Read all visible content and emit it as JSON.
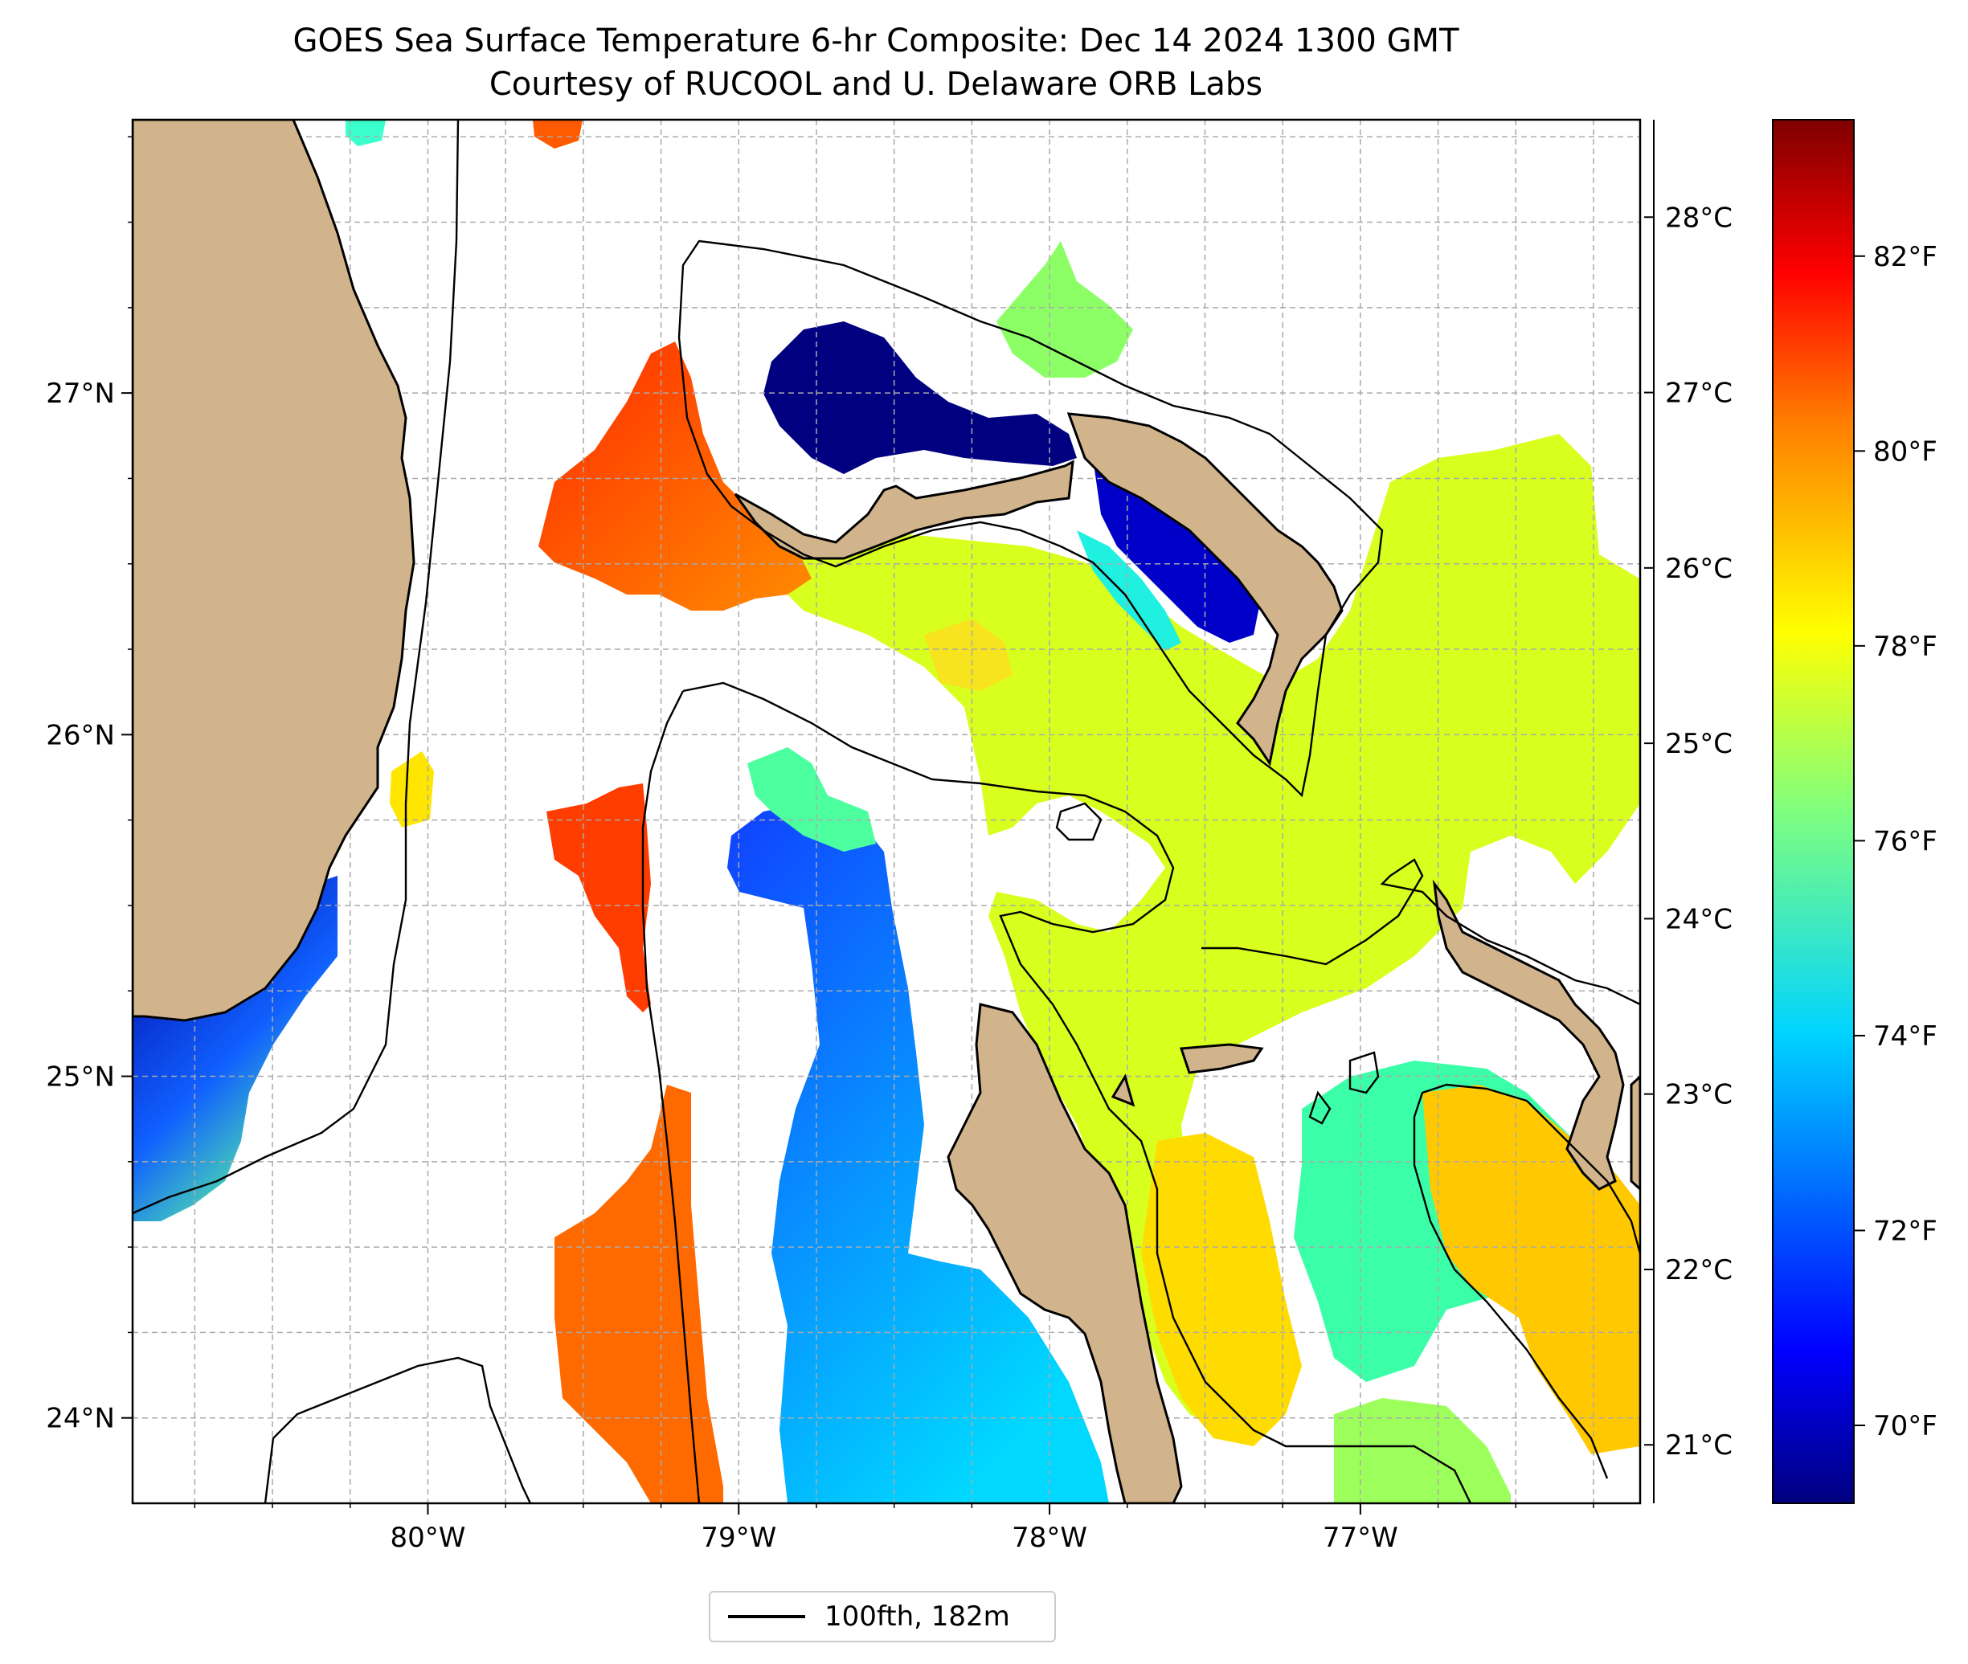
{
  "title": {
    "line1": "GOES Sea Surface Temperature 6-hr Composite: Dec 14 2024 1300 GMT",
    "line2": "Courtesy of RUCOOL and U. Delaware ORB Labs"
  },
  "map": {
    "lon_range": [
      -80.95,
      -76.1
    ],
    "lat_range": [
      23.75,
      27.8
    ],
    "lon_ticks": [
      {
        "value": -80,
        "label": "80°W"
      },
      {
        "value": -79,
        "label": "79°W"
      },
      {
        "value": -78,
        "label": "78°W"
      },
      {
        "value": -77,
        "label": "77°W"
      }
    ],
    "lat_ticks": [
      {
        "value": 24,
        "label": "24°N"
      },
      {
        "value": 25,
        "label": "25°N"
      },
      {
        "value": 26,
        "label": "26°N"
      },
      {
        "value": 27,
        "label": "27°N"
      }
    ],
    "gridlines": "dashed",
    "land_color": "#d2b48c",
    "ocean_background": "#ffffff"
  },
  "colorbar": {
    "colormap": "jet",
    "range_f": [
      69.2,
      83.4
    ],
    "fahrenheit_ticks": [
      {
        "value": 70,
        "label": "70°F"
      },
      {
        "value": 72,
        "label": "72°F"
      },
      {
        "value": 74,
        "label": "74°F"
      },
      {
        "value": 76,
        "label": "76°F"
      },
      {
        "value": 78,
        "label": "78°F"
      },
      {
        "value": 80,
        "label": "80°F"
      },
      {
        "value": 82,
        "label": "82°F"
      }
    ],
    "celsius_ticks": [
      {
        "value": 21,
        "label": "21°C"
      },
      {
        "value": 22,
        "label": "22°C"
      },
      {
        "value": 23,
        "label": "23°C"
      },
      {
        "value": 24,
        "label": "24°C"
      },
      {
        "value": 25,
        "label": "25°C"
      },
      {
        "value": 26,
        "label": "26°C"
      },
      {
        "value": 27,
        "label": "27°C"
      },
      {
        "value": 28,
        "label": "28°C"
      }
    ],
    "colors": [
      "#00007f",
      "#0000ff",
      "#007fff",
      "#00ffff",
      "#7fff7f",
      "#ffff00",
      "#ff7f00",
      "#ff0000",
      "#7f0000"
    ]
  },
  "legend": {
    "label": "100fth, 182m",
    "line_color": "#000000"
  }
}
